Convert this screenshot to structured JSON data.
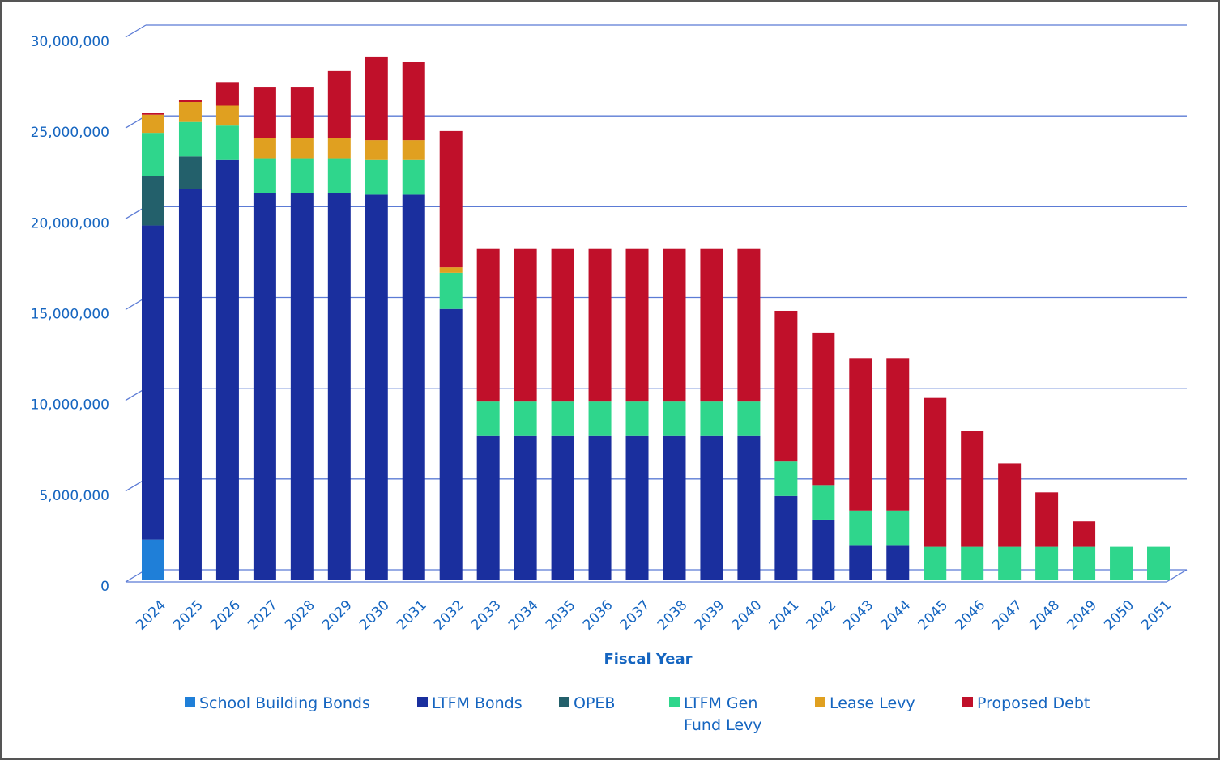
{
  "chart_data": {
    "type": "stacked_bar",
    "x_label": "Fiscal Year",
    "categories": [
      "2024",
      "2025",
      "2026",
      "2027",
      "2028",
      "2029",
      "2030",
      "2031",
      "2032",
      "2033",
      "2034",
      "2035",
      "2036",
      "2037",
      "2038",
      "2039",
      "2040",
      "2041",
      "2042",
      "2043",
      "2044",
      "2045",
      "2046",
      "2047",
      "2048",
      "2049",
      "2050",
      "2051"
    ],
    "series": [
      {
        "name": "School Building Bonds",
        "color": "#1f7fd8",
        "values": [
          2200000,
          0,
          0,
          0,
          0,
          0,
          0,
          0,
          0,
          0,
          0,
          0,
          0,
          0,
          0,
          0,
          0,
          0,
          0,
          0,
          0,
          0,
          0,
          0,
          0,
          0,
          0,
          0
        ]
      },
      {
        "name": "LTFM Bonds",
        "color": "#1a2f9e",
        "values": [
          17300000,
          21500000,
          23100000,
          21300000,
          21300000,
          21300000,
          21200000,
          21200000,
          14900000,
          7900000,
          7900000,
          7900000,
          7900000,
          7900000,
          7900000,
          7900000,
          7900000,
          4600000,
          3300000,
          1900000,
          1900000,
          0,
          0,
          0,
          0,
          0,
          0,
          0
        ]
      },
      {
        "name": "OPEB",
        "color": "#23606b",
        "values": [
          2700000,
          1800000,
          0,
          0,
          0,
          0,
          0,
          0,
          0,
          0,
          0,
          0,
          0,
          0,
          0,
          0,
          0,
          0,
          0,
          0,
          0,
          0,
          0,
          0,
          0,
          0,
          0,
          0
        ]
      },
      {
        "name": "LTFM Gen Fund Levy",
        "color": "#2fd68c",
        "values": [
          2400000,
          1900000,
          1900000,
          1900000,
          1900000,
          1900000,
          1900000,
          1900000,
          2000000,
          1900000,
          1900000,
          1900000,
          1900000,
          1900000,
          1900000,
          1900000,
          1900000,
          1900000,
          1900000,
          1900000,
          1900000,
          1800000,
          1800000,
          1800000,
          1800000,
          1800000,
          1800000,
          1800000
        ]
      },
      {
        "name": "Lease Levy",
        "color": "#e0a020",
        "values": [
          1000000,
          1100000,
          1100000,
          1100000,
          1100000,
          1100000,
          1100000,
          1100000,
          300000,
          0,
          0,
          0,
          0,
          0,
          0,
          0,
          0,
          0,
          0,
          0,
          0,
          0,
          0,
          0,
          0,
          0,
          0,
          0
        ]
      },
      {
        "name": "Proposed Debt",
        "color": "#c0102a",
        "values": [
          100000,
          100000,
          1300000,
          2800000,
          2800000,
          3700000,
          4600000,
          4300000,
          7500000,
          8400000,
          8400000,
          8400000,
          8400000,
          8400000,
          8400000,
          8400000,
          8400000,
          8300000,
          8400000,
          8400000,
          8400000,
          8200000,
          6400000,
          4600000,
          3000000,
          1400000,
          0,
          0
        ]
      }
    ],
    "ylim": [
      0,
      30000000
    ],
    "yticks": [
      0,
      {
        "value": 5000000,
        "label": "5,000,000"
      },
      {
        "value": 10000000,
        "label": "10,000,000"
      },
      {
        "value": 15000000,
        "label": "15,000,000"
      },
      {
        "value": 20000000,
        "label": "20,000,000"
      },
      {
        "value": 25000000,
        "label": "25,000,000"
      },
      {
        "value": 30000000,
        "label": "30,000,000"
      }
    ],
    "grid": true,
    "legend": "bottom"
  }
}
